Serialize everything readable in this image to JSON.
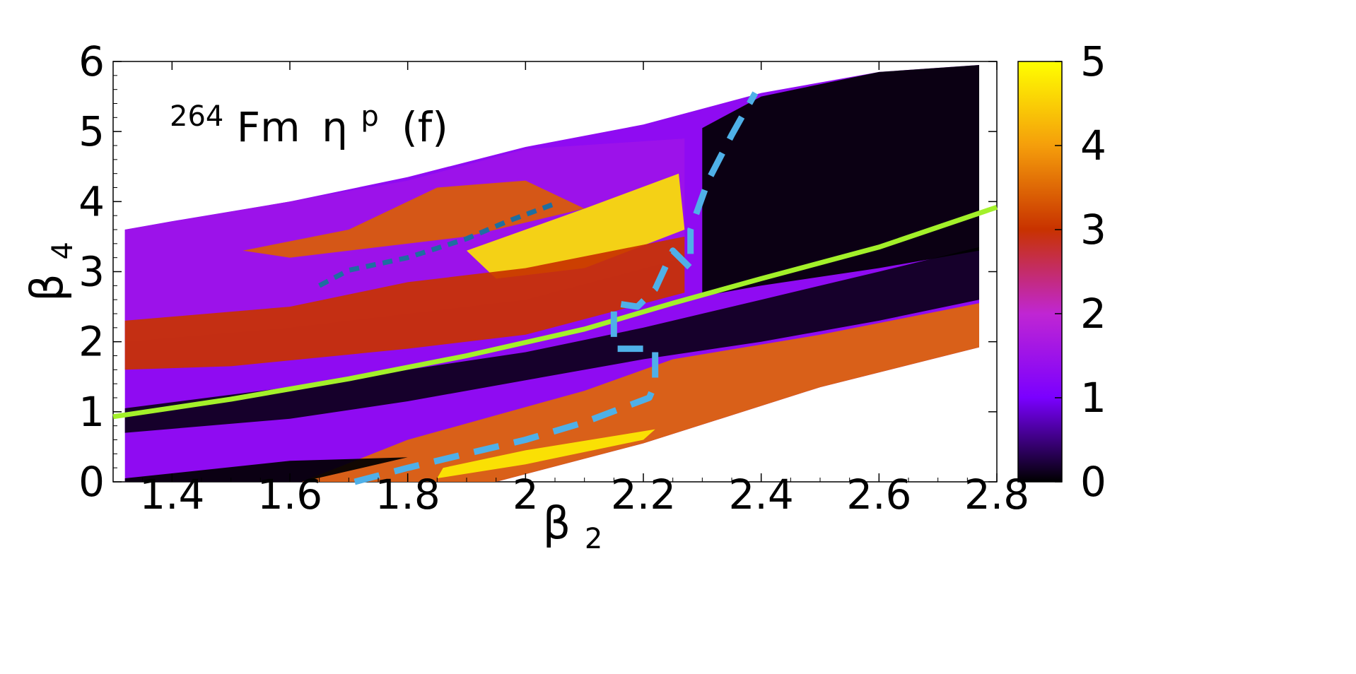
{
  "chart_data": {
    "type": "heatmap",
    "title": "",
    "annotation": {
      "superscript": "264",
      "element": "Fm",
      "symbol": "η",
      "symbol_sup": "p",
      "suffix": "(f)"
    },
    "xlabel": {
      "base": "β",
      "sub": "2"
    },
    "ylabel": {
      "base": "β",
      "sub": "4"
    },
    "xlim": [
      1.3,
      2.8
    ],
    "ylim": [
      0,
      6
    ],
    "x_ticks": [
      1.4,
      1.6,
      1.8,
      2.0,
      2.2,
      2.4,
      2.6,
      2.8
    ],
    "x_tick_labels": [
      "1.4",
      "1.6",
      "1.8",
      "2",
      "2.2",
      "2.4",
      "2.6",
      "2.8"
    ],
    "y_ticks": [
      0,
      1,
      2,
      3,
      4,
      5,
      6
    ],
    "y_tick_labels": [
      "0",
      "1",
      "2",
      "3",
      "4",
      "5",
      "6"
    ],
    "colorbar": {
      "range": [
        0,
        5
      ],
      "ticks": [
        0,
        1,
        2,
        3,
        4,
        5
      ],
      "tick_labels": [
        "0",
        "1",
        "2",
        "3",
        "4",
        "5"
      ],
      "colors": [
        "#000000",
        "#7a00ff",
        "#c026d3",
        "#c83200",
        "#f59e0b",
        "#ffff00"
      ]
    },
    "domain_upper": [
      [
        1.32,
        3.6
      ],
      [
        1.4,
        3.72
      ],
      [
        1.6,
        4.0
      ],
      [
        1.8,
        4.35
      ],
      [
        2.0,
        4.78
      ],
      [
        2.2,
        5.1
      ],
      [
        2.4,
        5.55
      ],
      [
        2.6,
        5.85
      ],
      [
        2.77,
        5.95
      ]
    ],
    "domain_lower": [
      [
        1.32,
        0.0
      ],
      [
        1.95,
        0.0
      ],
      [
        2.2,
        0.55
      ],
      [
        2.5,
        1.35
      ],
      [
        2.77,
        1.92
      ]
    ],
    "regions": [
      {
        "name": "purple-band-top",
        "value": 1.5,
        "points": [
          [
            1.32,
            3.6
          ],
          [
            1.6,
            4.0
          ],
          [
            1.8,
            4.3
          ],
          [
            2.0,
            4.75
          ],
          [
            2.27,
            4.9
          ],
          [
            2.27,
            3.2
          ],
          [
            2.0,
            2.6
          ],
          [
            1.8,
            2.4
          ],
          [
            1.6,
            2.2
          ],
          [
            1.32,
            2.0
          ]
        ]
      },
      {
        "name": "orange-ridge-upper",
        "value": 3.4,
        "points": [
          [
            1.52,
            3.3
          ],
          [
            1.7,
            3.6
          ],
          [
            1.85,
            4.2
          ],
          [
            2.0,
            4.3
          ],
          [
            2.1,
            3.9
          ],
          [
            1.9,
            3.5
          ],
          [
            1.7,
            3.3
          ],
          [
            1.6,
            3.2
          ]
        ]
      },
      {
        "name": "yellow-lobe",
        "value": 4.7,
        "points": [
          [
            1.9,
            3.3
          ],
          [
            2.1,
            3.9
          ],
          [
            2.26,
            4.4
          ],
          [
            2.27,
            3.6
          ],
          [
            2.1,
            3.05
          ],
          [
            1.95,
            2.9
          ]
        ]
      },
      {
        "name": "orange-mid-band",
        "value": 3.0,
        "points": [
          [
            1.32,
            2.3
          ],
          [
            1.6,
            2.5
          ],
          [
            1.8,
            2.85
          ],
          [
            2.0,
            3.05
          ],
          [
            2.27,
            3.5
          ],
          [
            2.27,
            2.7
          ],
          [
            2.0,
            2.1
          ],
          [
            1.8,
            1.9
          ],
          [
            1.5,
            1.65
          ],
          [
            1.32,
            1.6
          ]
        ]
      },
      {
        "name": "dark-band",
        "value": 0.1,
        "points": [
          [
            1.32,
            1.05
          ],
          [
            1.6,
            1.35
          ],
          [
            1.8,
            1.6
          ],
          [
            2.0,
            1.85
          ],
          [
            2.2,
            2.2
          ],
          [
            2.4,
            2.6
          ],
          [
            2.6,
            3.0
          ],
          [
            2.77,
            3.35
          ],
          [
            2.77,
            2.6
          ],
          [
            2.6,
            2.3
          ],
          [
            2.4,
            2.0
          ],
          [
            2.2,
            1.75
          ],
          [
            2.0,
            1.45
          ],
          [
            1.8,
            1.15
          ],
          [
            1.6,
            0.9
          ],
          [
            1.32,
            0.7
          ]
        ]
      },
      {
        "name": "black-upper-right",
        "value": 0.0,
        "points": [
          [
            2.3,
            5.05
          ],
          [
            2.4,
            5.5
          ],
          [
            2.6,
            5.85
          ],
          [
            2.77,
            5.95
          ],
          [
            2.77,
            3.3
          ],
          [
            2.6,
            3.05
          ],
          [
            2.4,
            2.8
          ],
          [
            2.3,
            2.65
          ]
        ]
      },
      {
        "name": "orange-lower-band",
        "value": 3.5,
        "points": [
          [
            1.62,
            0.0
          ],
          [
            1.95,
            0.0
          ],
          [
            2.2,
            0.55
          ],
          [
            2.5,
            1.35
          ],
          [
            2.77,
            1.92
          ],
          [
            2.77,
            2.55
          ],
          [
            2.5,
            2.1
          ],
          [
            2.25,
            1.75
          ],
          [
            2.1,
            1.3
          ],
          [
            1.95,
            0.95
          ],
          [
            1.8,
            0.6
          ]
        ]
      },
      {
        "name": "yellow-lower-streak",
        "value": 4.8,
        "points": [
          [
            1.85,
            0.05
          ],
          [
            2.0,
            0.25
          ],
          [
            2.2,
            0.6
          ],
          [
            2.22,
            0.75
          ],
          [
            2.0,
            0.45
          ],
          [
            1.86,
            0.2
          ]
        ]
      },
      {
        "name": "black-lower-left",
        "value": 0.0,
        "points": [
          [
            1.32,
            0.0
          ],
          [
            1.62,
            0.0
          ],
          [
            1.8,
            0.35
          ],
          [
            1.6,
            0.3
          ],
          [
            1.32,
            0.05
          ]
        ]
      }
    ],
    "series": [
      {
        "name": "green-reference-line",
        "color": "#a3f02a",
        "style": "solid",
        "x": [
          1.3,
          1.5,
          1.7,
          1.9,
          2.1,
          2.25,
          2.4,
          2.6,
          2.8
        ],
        "y": [
          0.93,
          1.18,
          1.47,
          1.8,
          2.18,
          2.55,
          2.9,
          3.35,
          3.92
        ]
      },
      {
        "name": "dark-blue-dashed-path",
        "color": "#1e6ea0",
        "style": "dashed",
        "x": [
          1.65,
          1.7,
          1.8,
          1.9,
          1.97,
          2.05
        ],
        "y": [
          2.8,
          3.02,
          3.2,
          3.47,
          3.72,
          3.97
        ]
      },
      {
        "name": "light-blue-dashed-path",
        "color": "#4fb0e8",
        "style": "dashed-thick",
        "x": [
          1.71,
          1.8,
          1.9,
          2.0,
          2.1,
          2.21,
          2.22,
          2.22,
          2.22,
          2.15,
          2.15,
          2.15,
          2.19,
          2.22,
          2.25,
          2.28,
          2.28,
          2.31,
          2.35,
          2.39
        ],
        "y": [
          0.0,
          0.2,
          0.4,
          0.6,
          0.85,
          1.2,
          1.4,
          1.9,
          1.9,
          1.9,
          2.3,
          2.55,
          2.5,
          2.75,
          3.3,
          3.05,
          3.6,
          4.3,
          4.95,
          5.55
        ]
      }
    ]
  }
}
